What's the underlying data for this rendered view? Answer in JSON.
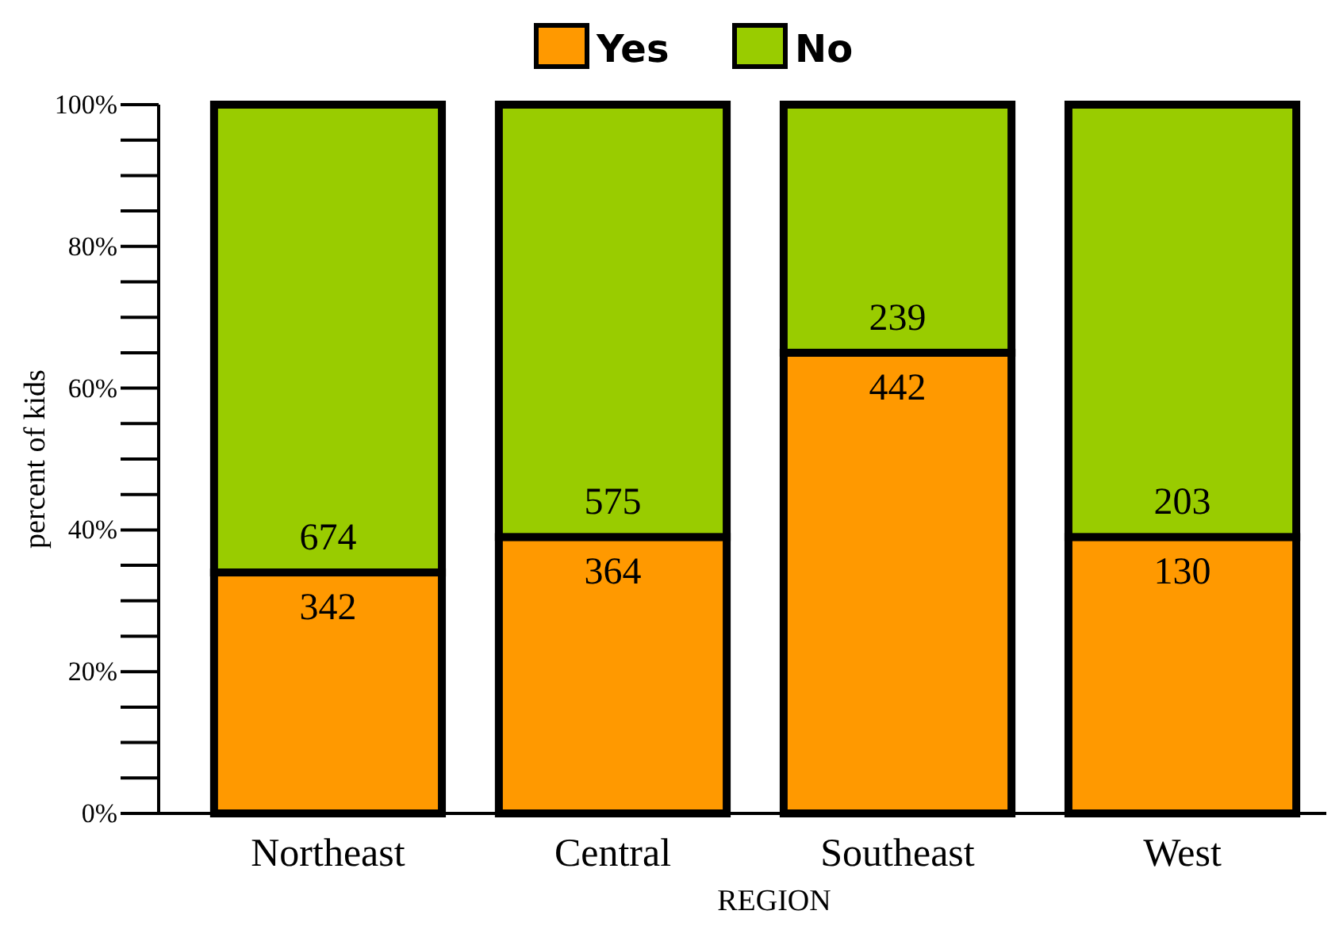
{
  "chart_data": {
    "type": "bar",
    "stacked": true,
    "xlabel": "REGION",
    "ylabel": "percent of kids",
    "categories": [
      "Northeast",
      "Central",
      "Southeast",
      "West"
    ],
    "series": [
      {
        "name": "Yes",
        "color": "#ff9900",
        "values": [
          34,
          39,
          65,
          39
        ]
      },
      {
        "name": "No",
        "color": "#99cc00",
        "values": [
          66,
          61,
          35,
          61
        ]
      }
    ],
    "annotations": [
      {
        "text": "342",
        "x": "Northeast",
        "y": 34
      },
      {
        "text": "364",
        "x": "Central",
        "y": 39
      },
      {
        "text": "442",
        "x": "Southeast",
        "y": 65
      },
      {
        "text": "130",
        "x": "West",
        "y": 39
      },
      {
        "text": "674",
        "x": "Northeast",
        "y": 34
      },
      {
        "text": "575",
        "x": "Central",
        "y": 39
      },
      {
        "text": "239",
        "x": "Southeast",
        "y": 65
      },
      {
        "text": "203",
        "x": "West",
        "y": 39
      }
    ],
    "ylim": [
      0,
      100
    ],
    "yticks": [
      {
        "value": 0,
        "label": "0%"
      },
      {
        "value": 20,
        "label": "20%"
      },
      {
        "value": 40,
        "label": "40%"
      },
      {
        "value": 60,
        "label": "60%"
      },
      {
        "value": 80,
        "label": "80%"
      },
      {
        "value": 100,
        "label": "100%"
      }
    ],
    "legend": "top",
    "grid": false
  }
}
